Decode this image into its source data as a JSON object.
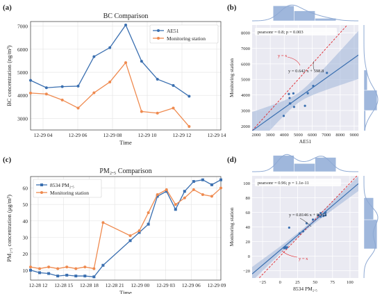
{
  "colors": {
    "blue": "#3a6fb0",
    "orange": "#ef8a4f",
    "band": "#9fb5d9",
    "dens": "#8ea9d3",
    "hist": "#9fb7dc",
    "ref": "#e0242b",
    "frame": "#333333"
  },
  "chart_data": [
    {
      "id": "a",
      "panel_label": "(a)",
      "type": "line",
      "title": "BC Comparison",
      "xlabel": "Time",
      "ylabel": "BC concentration (ng/m³)",
      "x_ticks": [
        "12-29 04",
        "12-29 06",
        "12-29 08",
        "12-29 10",
        "12-29 12",
        "12-29 14"
      ],
      "y_ticks": [
        "3000",
        "4000",
        "5000",
        "6000",
        "7000"
      ],
      "xlim": [
        0,
        12
      ],
      "ylim": [
        2500,
        7200
      ],
      "legend_position": "top-right",
      "series": [
        {
          "name": "AE51",
          "color": "blue",
          "marker": "circle",
          "x": [
            0,
            1,
            2,
            3,
            4,
            5,
            6,
            7,
            8,
            9,
            10,
            11
          ],
          "y": [
            4650,
            4330,
            4380,
            4400,
            5680,
            6070,
            7050,
            5480,
            4700,
            4430,
            3960,
            null
          ]
        },
        {
          "name": "Monitoring station",
          "color": "orange",
          "marker": "circle",
          "x": [
            0,
            1,
            2,
            3,
            4,
            5,
            6,
            7,
            8,
            9,
            10,
            11
          ],
          "y": [
            4100,
            4060,
            3800,
            3450,
            4110,
            4580,
            5420,
            3300,
            3230,
            3450,
            2650,
            null
          ]
        }
      ]
    },
    {
      "id": "b",
      "panel_label": "(b)",
      "type": "scatter",
      "xlabel": "AE51",
      "ylabel": "Monitoring station",
      "x_ticks": [
        "2000",
        "3000",
        "4000",
        "5000",
        "6000",
        "7000",
        "8000",
        "9000"
      ],
      "y_ticks": [
        "2000",
        "3000",
        "4000",
        "5000",
        "6000",
        "7000",
        "8000"
      ],
      "xlim": [
        1700,
        9300
      ],
      "ylim": [
        1700,
        8500
      ],
      "stats": "pearsonr = 0.8; p = 0.003",
      "fit_label": "y = 0.642 x + 598.8",
      "ref_label": "y = x",
      "fit": {
        "slope": 0.642,
        "intercept": 598.8
      },
      "points": [
        {
          "x": 3960,
          "y": 2650
        },
        {
          "x": 4330,
          "y": 4060
        },
        {
          "x": 4380,
          "y": 3800
        },
        {
          "x": 4400,
          "y": 3450
        },
        {
          "x": 4430,
          "y": 3450
        },
        {
          "x": 4650,
          "y": 4100
        },
        {
          "x": 4700,
          "y": 3230
        },
        {
          "x": 5480,
          "y": 3300
        },
        {
          "x": 5680,
          "y": 4110
        },
        {
          "x": 6070,
          "y": 4580
        },
        {
          "x": 7050,
          "y": 5420
        }
      ]
    },
    {
      "id": "c",
      "panel_label": "(c)",
      "type": "line",
      "title": "PM₂.₅ Comparison",
      "xlabel": "Time",
      "ylabel": "PM₂.₅ concentration (μg/m³)",
      "x_ticks": [
        "12-28 12",
        "12-28 15",
        "12-28 18",
        "12-28 21",
        "12-29 00",
        "12-29 03",
        "12-29 06",
        "12-29 09"
      ],
      "y_ticks": [
        "10",
        "20",
        "30",
        "40",
        "50",
        "60"
      ],
      "xlim": [
        0,
        21
      ],
      "ylim": [
        4,
        67
      ],
      "legend_position": "top-left",
      "series": [
        {
          "name": "8534 PM₂.₅",
          "color": "blue",
          "marker": "square",
          "x": [
            0,
            1,
            2,
            3,
            4,
            5,
            6,
            7,
            8,
            11,
            12,
            13,
            14,
            15,
            16,
            17,
            18,
            19,
            20,
            21
          ],
          "y": [
            10,
            8.5,
            8,
            6.5,
            7,
            6.5,
            6.5,
            6,
            13,
            28,
            33,
            38,
            55,
            58,
            47,
            58,
            64,
            65,
            62,
            65
          ]
        },
        {
          "name": "Monitoring station",
          "color": "orange",
          "marker": "circle",
          "x": [
            0,
            1,
            2,
            3,
            4,
            5,
            6,
            7,
            8,
            11,
            12,
            13,
            14,
            15,
            16,
            17,
            18,
            19,
            20,
            21
          ],
          "y": [
            12,
            11,
            12,
            11,
            12,
            11,
            12,
            11,
            39,
            31,
            34,
            45,
            56,
            59,
            50,
            54,
            59,
            56,
            55,
            60
          ]
        }
      ]
    },
    {
      "id": "d",
      "panel_label": "(d)",
      "type": "scatter",
      "xlabel": "8534 PM₂.₅",
      "ylabel": "Monitoring station",
      "x_ticks": [
        "−25",
        "0",
        "25",
        "50",
        "75",
        "100"
      ],
      "y_ticks": [
        "−20",
        "0",
        "20",
        "40",
        "60",
        "80",
        "100"
      ],
      "xlim": [
        -40,
        112
      ],
      "ylim": [
        -30,
        110
      ],
      "stats": "pearsonr = 0.96; p = 1.1e-11",
      "fit_label": "y = 0.8146 x + 8.112",
      "ref_label": "y = x",
      "fit": {
        "slope": 0.8146,
        "intercept": 8.112
      },
      "points": [
        {
          "x": 6,
          "y": 11
        },
        {
          "x": 6.5,
          "y": 12
        },
        {
          "x": 7,
          "y": 12
        },
        {
          "x": 8,
          "y": 12
        },
        {
          "x": 8.5,
          "y": 11
        },
        {
          "x": 10,
          "y": 12
        },
        {
          "x": 6.5,
          "y": 11
        },
        {
          "x": 13,
          "y": 39
        },
        {
          "x": 28,
          "y": 31
        },
        {
          "x": 33,
          "y": 34
        },
        {
          "x": 38,
          "y": 45
        },
        {
          "x": 47,
          "y": 50
        },
        {
          "x": 55,
          "y": 56
        },
        {
          "x": 58,
          "y": 59
        },
        {
          "x": 58,
          "y": 54
        },
        {
          "x": 62,
          "y": 55
        },
        {
          "x": 64,
          "y": 59
        },
        {
          "x": 65,
          "y": 56
        },
        {
          "x": 65,
          "y": 60
        }
      ]
    }
  ]
}
